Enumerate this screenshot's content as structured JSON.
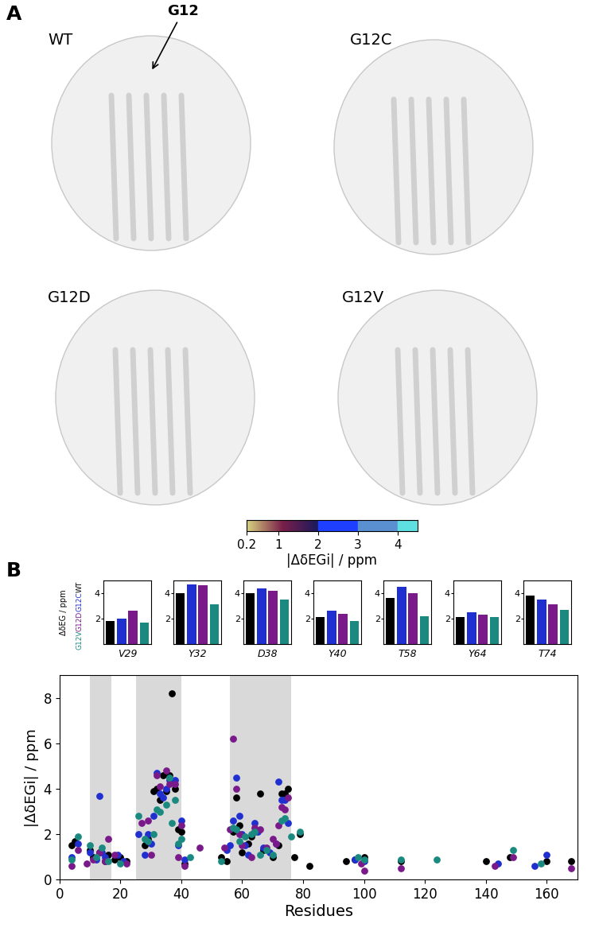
{
  "panel_labels": [
    "A",
    "B"
  ],
  "structures": {
    "panels": [
      "WT",
      "G12C",
      "G12D",
      "G12V"
    ],
    "annotation": "G12"
  },
  "colorbar": {
    "label": "|ΔδEGi| / ppm",
    "range": [
      0.2,
      4.5
    ],
    "ticks": [
      0.2,
      1,
      2,
      3,
      4
    ],
    "colors": [
      "#d8d47e",
      "#7a1f4a",
      "#1a1a5c",
      "#1f3fff",
      "#5a8fd0",
      "#5fe0e0"
    ]
  },
  "chart_data": [
    {
      "type": "bar",
      "title": "V29",
      "y_label": "ΔδEG / ppm",
      "categories": [
        "WT",
        "G12C",
        "G12D",
        "G12V"
      ],
      "values": [
        1.8,
        2.0,
        2.6,
        1.7
      ],
      "colors": [
        "#000000",
        "#1f2fd0",
        "#7a1a8a",
        "#1a8a80"
      ],
      "ylim": [
        0,
        5
      ],
      "yticks": [
        2,
        4
      ],
      "tick_labels": "y"
    },
    {
      "type": "bar",
      "title": "Y32",
      "categories": [
        "WT",
        "G12C",
        "G12D",
        "G12V"
      ],
      "values": [
        4.0,
        4.7,
        4.6,
        3.1
      ],
      "colors": [
        "#000000",
        "#1f2fd0",
        "#7a1a8a",
        "#1a8a80"
      ],
      "ylim": [
        0,
        5
      ],
      "yticks": [
        2,
        4
      ],
      "tick_labels": "y"
    },
    {
      "type": "bar",
      "title": "D38",
      "categories": [
        "WT",
        "G12C",
        "G12D",
        "G12V"
      ],
      "values": [
        4.0,
        4.4,
        4.2,
        3.5
      ],
      "colors": [
        "#000000",
        "#1f2fd0",
        "#7a1a8a",
        "#1a8a80"
      ],
      "ylim": [
        0,
        5
      ],
      "yticks": [
        2,
        4
      ],
      "tick_labels": "y"
    },
    {
      "type": "bar",
      "title": "Y40",
      "categories": [
        "WT",
        "G12C",
        "G12D",
        "G12V"
      ],
      "values": [
        2.1,
        2.6,
        2.4,
        1.8
      ],
      "colors": [
        "#000000",
        "#1f2fd0",
        "#7a1a8a",
        "#1a8a80"
      ],
      "ylim": [
        0,
        5
      ],
      "yticks": [
        2,
        4
      ],
      "tick_labels": "y"
    },
    {
      "type": "bar",
      "title": "T58",
      "categories": [
        "WT",
        "G12C",
        "G12D",
        "G12V"
      ],
      "values": [
        3.6,
        4.5,
        4.0,
        2.2
      ],
      "colors": [
        "#000000",
        "#1f2fd0",
        "#7a1a8a",
        "#1a8a80"
      ],
      "ylim": [
        0,
        5
      ],
      "yticks": [
        2,
        4
      ],
      "tick_labels": "y"
    },
    {
      "type": "bar",
      "title": "Y64",
      "categories": [
        "WT",
        "G12C",
        "G12D",
        "G12V"
      ],
      "values": [
        2.1,
        2.5,
        2.3,
        2.1
      ],
      "colors": [
        "#000000",
        "#1f2fd0",
        "#7a1a8a",
        "#1a8a80"
      ],
      "ylim": [
        0,
        5
      ],
      "yticks": [
        2,
        4
      ],
      "tick_labels": "y"
    },
    {
      "type": "bar",
      "title": "T74",
      "categories": [
        "WT",
        "G12C",
        "G12D",
        "G12V"
      ],
      "values": [
        3.8,
        3.5,
        3.1,
        2.7
      ],
      "colors": [
        "#000000",
        "#1f2fd0",
        "#7a1a8a",
        "#1a8a80"
      ],
      "ylim": [
        0,
        5
      ],
      "yticks": [
        2,
        4
      ],
      "tick_labels": "y"
    },
    {
      "type": "scatter",
      "x_label": "Residues",
      "y_label": "|ΔδEGi| / ppm",
      "xlim": [
        0,
        170
      ],
      "xticks": [
        0,
        20,
        40,
        60,
        80,
        100,
        120,
        140,
        160
      ],
      "ylim": [
        0,
        9
      ],
      "yticks": [
        0,
        2,
        4,
        6,
        8
      ],
      "shaded_ranges": [
        [
          10,
          17
        ],
        [
          25,
          40
        ],
        [
          56,
          76
        ]
      ],
      "series": [
        {
          "name": "WT",
          "color": "#000000",
          "marker": "circle",
          "x": [
            4,
            5,
            10,
            11,
            13,
            15,
            16,
            18,
            20,
            22,
            28,
            29,
            31,
            32,
            33,
            34,
            35,
            36,
            37,
            38,
            39,
            40,
            41,
            53,
            55,
            57,
            58,
            59,
            60,
            62,
            63,
            64,
            66,
            67,
            70,
            72,
            73,
            74,
            75,
            77,
            79,
            82,
            94,
            97,
            100,
            112,
            140,
            148,
            160,
            168
          ],
          "values": [
            1.5,
            1.7,
            1.3,
            1.0,
            1.2,
            0.8,
            1.1,
            0.9,
            1.0,
            0.8,
            1.5,
            1.8,
            3.9,
            4.0,
            3.5,
            4.6,
            3.9,
            4.6,
            8.2,
            4.0,
            2.2,
            2.1,
            0.7,
            1.0,
            0.8,
            2.1,
            3.6,
            2.4,
            1.2,
            1.6,
            1.9,
            2.1,
            3.8,
            1.3,
            1.0,
            1.5,
            3.8,
            3.8,
            4.0,
            1.0,
            2.0,
            0.6,
            0.8,
            0.9,
            1.0,
            0.8,
            0.8,
            1.0,
            0.8,
            0.8
          ]
        },
        {
          "name": "G12C",
          "color": "#1f2fd0",
          "marker": "circle",
          "x": [
            4,
            6,
            10,
            12,
            13,
            14,
            15,
            19,
            21,
            26,
            28,
            29,
            30,
            31,
            32,
            33,
            34,
            35,
            36,
            38,
            39,
            40,
            41,
            55,
            56,
            57,
            58,
            59,
            60,
            61,
            62,
            64,
            65,
            67,
            69,
            71,
            72,
            73,
            74,
            75,
            97,
            100,
            144,
            156,
            160
          ],
          "values": [
            1.0,
            1.6,
            1.2,
            0.9,
            3.7,
            1.2,
            1.0,
            1.1,
            0.8,
            2.0,
            1.1,
            2.0,
            1.6,
            2.8,
            4.7,
            3.8,
            3.6,
            4.0,
            4.4,
            4.4,
            1.5,
            2.6,
            0.9,
            1.3,
            1.5,
            2.6,
            4.5,
            2.8,
            2.0,
            1.5,
            1.1,
            2.5,
            2.1,
            1.4,
            1.2,
            1.6,
            4.3,
            3.5,
            3.5,
            2.5,
            0.9,
            0.8,
            0.7,
            0.6,
            1.1
          ]
        },
        {
          "name": "G12D",
          "color": "#7a1a8a",
          "marker": "circle",
          "x": [
            4,
            6,
            9,
            11,
            13,
            15,
            16,
            18,
            22,
            27,
            29,
            30,
            32,
            33,
            35,
            36,
            38,
            39,
            40,
            41,
            46,
            54,
            56,
            57,
            58,
            59,
            60,
            63,
            64,
            66,
            68,
            70,
            71,
            72,
            73,
            74,
            75,
            99,
            100,
            112,
            143,
            149,
            168
          ],
          "values": [
            0.6,
            1.3,
            0.7,
            0.9,
            1.2,
            0.8,
            1.8,
            1.1,
            0.7,
            2.5,
            2.6,
            1.1,
            4.6,
            4.1,
            4.8,
            4.2,
            4.2,
            1.0,
            2.4,
            0.6,
            1.4,
            1.4,
            2.2,
            6.2,
            4.0,
            2.0,
            1.5,
            1.0,
            2.3,
            2.2,
            1.4,
            1.8,
            1.6,
            2.4,
            3.2,
            3.1,
            3.6,
            0.7,
            0.4,
            0.5,
            0.6,
            1.0,
            0.5
          ]
        },
        {
          "name": "G12V",
          "color": "#1a8a80",
          "marker": "circle",
          "x": [
            4,
            6,
            10,
            12,
            14,
            16,
            20,
            26,
            28,
            29,
            31,
            32,
            33,
            35,
            36,
            37,
            38,
            39,
            40,
            43,
            53,
            57,
            58,
            59,
            61,
            63,
            64,
            66,
            68,
            70,
            73,
            74,
            76,
            79,
            98,
            100,
            112,
            124,
            149,
            158
          ],
          "values": [
            0.9,
            1.9,
            1.5,
            1.0,
            1.4,
            0.8,
            0.7,
            2.8,
            1.8,
            1.7,
            2.0,
            3.1,
            3.0,
            3.3,
            4.5,
            2.5,
            3.5,
            1.6,
            1.8,
            1.0,
            0.8,
            2.3,
            2.2,
            1.7,
            1.9,
            2.0,
            2.1,
            1.1,
            1.3,
            1.1,
            2.6,
            2.7,
            1.9,
            2.1,
            1.0,
            0.9,
            0.9,
            0.9,
            1.3,
            0.7
          ]
        }
      ]
    }
  ]
}
